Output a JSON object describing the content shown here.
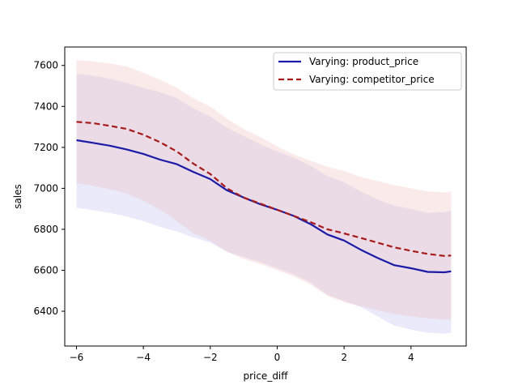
{
  "chart_data": {
    "type": "line",
    "title": "",
    "xlabel": "price_diff",
    "ylabel": "sales",
    "xlim": [
      -6.35,
      5.65
    ],
    "ylim": [
      6230,
      7690
    ],
    "xticks": [
      -6,
      -4,
      -2,
      0,
      2,
      4
    ],
    "xtick_labels": [
      "−6",
      "−4",
      "−2",
      "0",
      "2",
      "4"
    ],
    "yticks": [
      6400,
      6600,
      6800,
      7000,
      7200,
      7400,
      7600
    ],
    "ytick_labels": [
      "6400",
      "6600",
      "6800",
      "7000",
      "7200",
      "7400",
      "7600"
    ],
    "grid": false,
    "legend_position": "top-right",
    "x": [
      -6,
      -5.5,
      -5,
      -4.5,
      -4,
      -3.5,
      -3,
      -2.5,
      -2,
      -1.5,
      -1,
      -0.5,
      0,
      0.5,
      1,
      1.5,
      2,
      2.5,
      3,
      3.5,
      4,
      4.5,
      5,
      5.2
    ],
    "series": [
      {
        "name": "Varying: product_price",
        "color": "#1a1aa6",
        "style": "solid",
        "values": [
          7235,
          7222,
          7208,
          7190,
          7168,
          7140,
          7118,
          7080,
          7045,
          6990,
          6955,
          6922,
          6895,
          6865,
          6825,
          6775,
          6745,
          6700,
          6660,
          6625,
          6610,
          6592,
          6590,
          6595
        ],
        "band_lower": [
          6905,
          6893,
          6880,
          6862,
          6840,
          6812,
          6790,
          6760,
          6735,
          6690,
          6665,
          6640,
          6610,
          6580,
          6540,
          6480,
          6450,
          6420,
          6375,
          6330,
          6310,
          6295,
          6290,
          6295
        ],
        "band_upper": [
          7560,
          7550,
          7535,
          7515,
          7490,
          7470,
          7440,
          7390,
          7350,
          7295,
          7255,
          7215,
          7180,
          7150,
          7110,
          7060,
          7030,
          6985,
          6945,
          6915,
          6900,
          6880,
          6885,
          6890
        ],
        "band_color": "#b3b3ee"
      },
      {
        "name": "Varying: competitor_price",
        "color": "#a61a1a",
        "style": "dashed",
        "values": [
          7325,
          7318,
          7305,
          7290,
          7262,
          7225,
          7180,
          7120,
          7070,
          7000,
          6955,
          6925,
          6895,
          6865,
          6835,
          6800,
          6780,
          6758,
          6735,
          6712,
          6695,
          6680,
          6670,
          6672
        ],
        "band_lower": [
          7025,
          7012,
          6995,
          6975,
          6940,
          6895,
          6840,
          6780,
          6745,
          6690,
          6655,
          6630,
          6600,
          6570,
          6530,
          6475,
          6445,
          6425,
          6405,
          6385,
          6375,
          6365,
          6358,
          6360
        ],
        "band_upper": [
          7625,
          7620,
          7610,
          7595,
          7565,
          7530,
          7490,
          7440,
          7400,
          7340,
          7290,
          7250,
          7205,
          7165,
          7135,
          7105,
          7085,
          7055,
          7035,
          7015,
          7000,
          6985,
          6980,
          6985
        ],
        "band_color": "#eeb3b3"
      }
    ]
  }
}
